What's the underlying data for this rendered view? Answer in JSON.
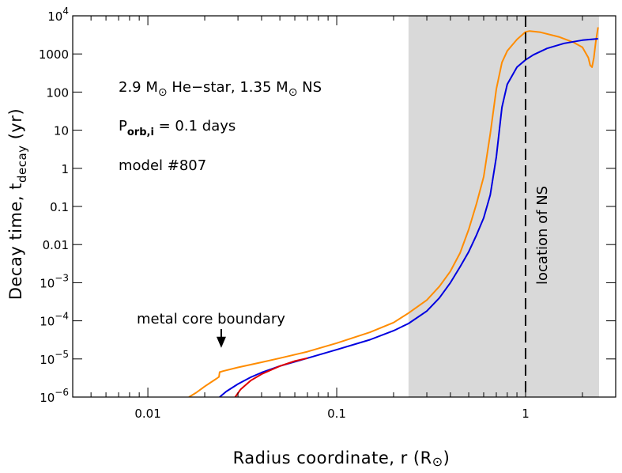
{
  "chart_data": {
    "type": "line",
    "xscale": "log",
    "yscale": "log",
    "xlim": [
      0.004,
      3
    ],
    "ylim": [
      1e-06,
      10000.0
    ],
    "grid": false,
    "xlabel": {
      "main": "Radius coordinate, r  (R",
      "symbol": "⊙",
      "tail": ")"
    },
    "ylabel": {
      "main": "Decay time, t",
      "sub": "decay",
      "tail": "  (yr)"
    },
    "x_ticks": [
      {
        "value": 0.01,
        "label": "0.01"
      },
      {
        "value": 0.1,
        "label": "0.1"
      },
      {
        "value": 1,
        "label": "1"
      }
    ],
    "y_ticks": [
      {
        "value": 1e-06,
        "base": "10",
        "exp": "−6"
      },
      {
        "value": 1e-05,
        "base": "10",
        "exp": "−5"
      },
      {
        "value": 0.0001,
        "base": "10",
        "exp": "−4"
      },
      {
        "value": 0.001,
        "base": "10",
        "exp": "−3"
      },
      {
        "value": 0.01,
        "label": "0.01"
      },
      {
        "value": 0.1,
        "label": "0.1"
      },
      {
        "value": 1,
        "label": "1"
      },
      {
        "value": 10,
        "label": "10"
      },
      {
        "value": 100,
        "label": "100"
      },
      {
        "value": 1000,
        "label": "1000"
      },
      {
        "value": 10000.0,
        "base": "10",
        "exp": "4"
      }
    ],
    "shaded_region": {
      "x_start": 0.24,
      "x_end": 2.45,
      "color": "#d9d9d9"
    },
    "vline": {
      "x": 1.0,
      "label": "location of NS"
    },
    "annotations": {
      "line1": {
        "a": "2.9 M",
        "sym": "⊙",
        "b": " He−star, 1.35 M",
        "sym2": "⊙",
        "c": " NS"
      },
      "line2": {
        "a": "P",
        "sub": "orb,i",
        "b": " = 0.1 days"
      },
      "line3": "model #807",
      "arrow": {
        "label": "metal core boundary",
        "x": 0.024,
        "y_tip": 1.1e-05
      }
    },
    "series": [
      {
        "color": "#ff8c00",
        "points": [
          [
            0.0165,
            1e-06
          ],
          [
            0.018,
            1.3e-06
          ],
          [
            0.02,
            1.9e-06
          ],
          [
            0.022,
            2.6e-06
          ],
          [
            0.023,
            3e-06
          ],
          [
            0.0238,
            3.4e-06
          ],
          [
            0.024,
            4.5e-06
          ],
          [
            0.025,
            4.8e-06
          ],
          [
            0.03,
            6e-06
          ],
          [
            0.04,
            8.2e-06
          ],
          [
            0.05,
            1.05e-05
          ],
          [
            0.07,
            1.55e-05
          ],
          [
            0.1,
            2.6e-05
          ],
          [
            0.15,
            5e-05
          ],
          [
            0.2,
            9e-05
          ],
          [
            0.24,
            0.00016
          ],
          [
            0.3,
            0.00035
          ],
          [
            0.35,
            0.0008
          ],
          [
            0.4,
            0.002
          ],
          [
            0.45,
            0.006
          ],
          [
            0.5,
            0.025
          ],
          [
            0.55,
            0.12
          ],
          [
            0.6,
            0.6
          ],
          [
            0.65,
            8
          ],
          [
            0.7,
            120
          ],
          [
            0.75,
            600
          ],
          [
            0.8,
            1200
          ],
          [
            0.9,
            2400
          ],
          [
            1.0,
            3800
          ],
          [
            1.05,
            4000
          ],
          [
            1.2,
            3700
          ],
          [
            1.5,
            2800
          ],
          [
            1.8,
            2000
          ],
          [
            2.0,
            1500
          ],
          [
            2.15,
            800
          ],
          [
            2.2,
            500
          ],
          [
            2.25,
            450
          ],
          [
            2.3,
            800
          ],
          [
            2.35,
            2000
          ],
          [
            2.42,
            5000
          ]
        ]
      },
      {
        "color": "#0000e0",
        "points": [
          [
            0.024,
            1e-06
          ],
          [
            0.026,
            1.4e-06
          ],
          [
            0.03,
            2.2e-06
          ],
          [
            0.035,
            3.3e-06
          ],
          [
            0.04,
            4.4e-06
          ],
          [
            0.05,
            6.5e-06
          ],
          [
            0.07,
            1.05e-05
          ],
          [
            0.1,
            1.75e-05
          ],
          [
            0.15,
            3.2e-05
          ],
          [
            0.2,
            5.5e-05
          ],
          [
            0.24,
            8.5e-05
          ],
          [
            0.3,
            0.00018
          ],
          [
            0.35,
            0.0004
          ],
          [
            0.4,
            0.001
          ],
          [
            0.45,
            0.0026
          ],
          [
            0.5,
            0.0065
          ],
          [
            0.55,
            0.018
          ],
          [
            0.6,
            0.05
          ],
          [
            0.65,
            0.2
          ],
          [
            0.7,
            2
          ],
          [
            0.75,
            40
          ],
          [
            0.8,
            160
          ],
          [
            0.9,
            450
          ],
          [
            1.0,
            700
          ],
          [
            1.1,
            950
          ],
          [
            1.3,
            1400
          ],
          [
            1.6,
            1900
          ],
          [
            2.0,
            2300
          ],
          [
            2.42,
            2500
          ]
        ]
      },
      {
        "color": "#e00000",
        "points": [
          [
            0.029,
            1e-06
          ],
          [
            0.031,
            1.6e-06
          ],
          [
            0.035,
            2.7e-06
          ],
          [
            0.04,
            4e-06
          ],
          [
            0.05,
            6.5e-06
          ],
          [
            0.06,
            8.8e-06
          ],
          [
            0.07,
            1.05e-05
          ]
        ]
      }
    ]
  }
}
